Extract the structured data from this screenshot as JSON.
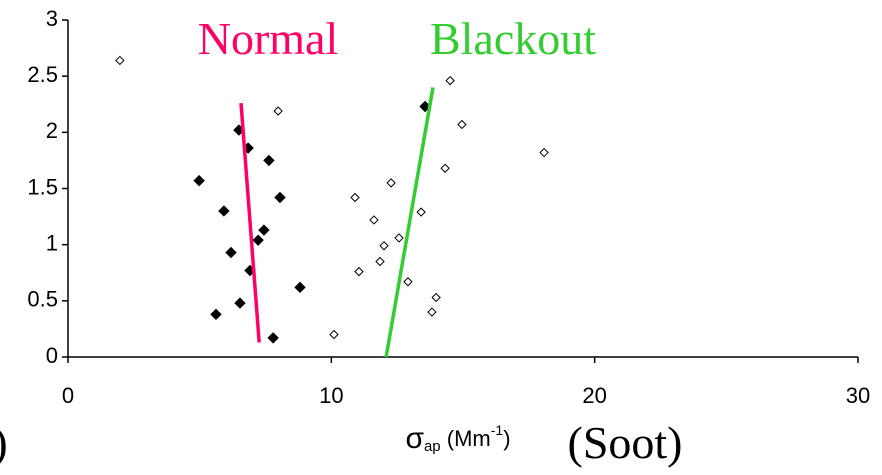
{
  "chart_data": {
    "type": "scatter",
    "xlim": [
      0,
      30
    ],
    "xticks": [
      0,
      10,
      20,
      30
    ],
    "ylim": [
      0,
      3
    ],
    "yticks": [
      0,
      0.5,
      1,
      1.5,
      2,
      2.5,
      3
    ],
    "x_label": {
      "symbol": "σ",
      "subscript": "ap",
      "unit": " (Mm",
      "superscript": "-1",
      "close": ")"
    },
    "x_label_note": "(Soot)",
    "left_fragment": ")",
    "series": [
      {
        "name": "Normal",
        "color": "#ff0066",
        "marker": "filled",
        "x": [
          6.49,
          6.84,
          7.63,
          4.98,
          8.05,
          5.92,
          7.44,
          7.22,
          6.19,
          6.91,
          8.81,
          6.53,
          5.62,
          7.79,
          13.56
        ],
        "values": [
          2.02,
          1.86,
          1.75,
          1.57,
          1.42,
          1.3,
          1.13,
          1.04,
          0.93,
          0.77,
          0.62,
          0.48,
          0.38,
          0.17,
          2.23
        ],
        "fit_x": [
          6.57,
          7.26
        ],
        "fit_y": [
          2.26,
          0.13
        ]
      },
      {
        "name": "Blackout",
        "color": "#33cc33",
        "marker": "open",
        "x": [
          1.97,
          7.98,
          14.51,
          14.96,
          18.08,
          14.32,
          12.27,
          10.9,
          13.41,
          11.62,
          12.57,
          12.0,
          11.85,
          11.05,
          12.91,
          13.98,
          13.82,
          10.1
        ],
        "values": [
          2.64,
          2.19,
          2.46,
          2.07,
          1.82,
          1.68,
          1.55,
          1.42,
          1.29,
          1.22,
          1.06,
          0.99,
          0.85,
          0.76,
          0.67,
          0.53,
          0.4,
          0.2
        ],
        "fit_x": [
          12.08,
          13.86
        ],
        "fit_y": [
          0,
          2.4
        ]
      }
    ]
  }
}
